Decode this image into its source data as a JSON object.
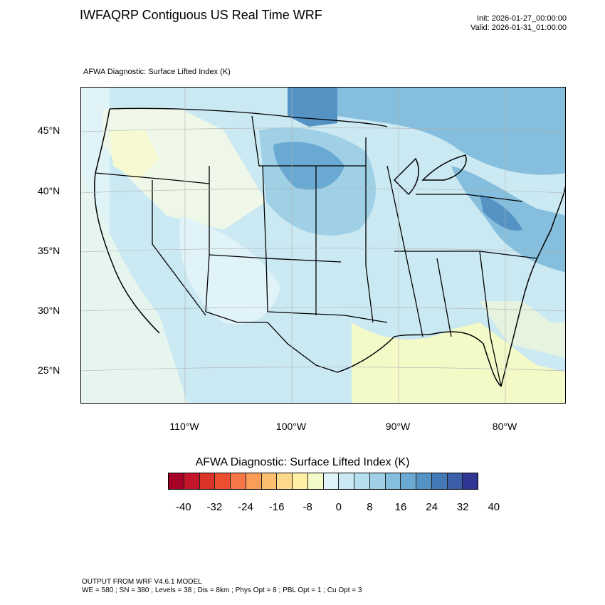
{
  "header": {
    "title": "IWFAQRP Contiguous US Real Time WRF",
    "init": "Init: 2026-01-27_00:00:00",
    "valid": "Valid: 2026-01-31_01:00:00"
  },
  "map": {
    "subtitle": "AFWA Diagnostic: Surface Lifted Index   (K)",
    "lat_labels": [
      "45°N",
      "40°N",
      "35°N",
      "30°N",
      "25°N"
    ],
    "lon_labels": [
      "110°W",
      "100°W",
      "90°W",
      "80°W"
    ]
  },
  "colorbar": {
    "title": "AFWA Diagnostic: Surface Lifted Index  (K)",
    "labels": [
      "-40",
      "-32",
      "-24",
      "-16",
      "-8",
      "0",
      "8",
      "16",
      "24",
      "32",
      "40"
    ],
    "colors": [
      "#a50026",
      "#c4162a",
      "#da3327",
      "#ea5030",
      "#f57748",
      "#fb9d59",
      "#fdbf6f",
      "#fed98b",
      "#fff0a6",
      "#f4f9c8",
      "#e0f3f8",
      "#cbe9f2",
      "#b5dfec",
      "#9fd0e5",
      "#85bfdd",
      "#6aaad2",
      "#5593c5",
      "#4479b7",
      "#3b5fa8",
      "#313695"
    ]
  },
  "footer": {
    "line1": "OUTPUT FROM WRF V4.6.1 MODEL",
    "line2": "WE = 580 ; SN = 380 ; Levels = 38 ; Dis = 8km ; Phys Opt = 8 ; PBL Opt = 1 ; Cu Opt = 3"
  }
}
